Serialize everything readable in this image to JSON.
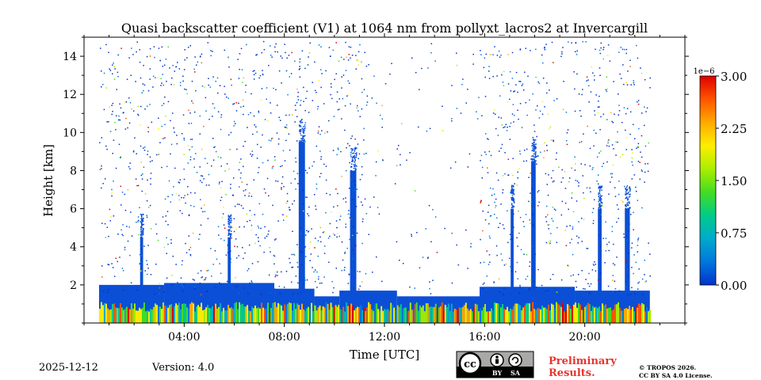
{
  "chart_data": {
    "type": "heatmap",
    "title": "Quasi backscatter coefficient (V1) at 1064 nm from pollyxt_lacros2 at Invercargill",
    "xlabel": "Time [UTC]",
    "ylabel": "Height [km]",
    "xlim_hours": [
      0,
      24
    ],
    "ylim_km": [
      0,
      15
    ],
    "x_ticks": [
      {
        "value": 4,
        "label": "04:00"
      },
      {
        "value": 8,
        "label": "08:00"
      },
      {
        "value": 12,
        "label": "12:00"
      },
      {
        "value": 16,
        "label": "16:00"
      },
      {
        "value": 20,
        "label": "20:00"
      }
    ],
    "y_ticks": [
      {
        "value": 2,
        "label": "2"
      },
      {
        "value": 4,
        "label": "4"
      },
      {
        "value": 6,
        "label": "6"
      },
      {
        "value": 8,
        "label": "8"
      },
      {
        "value": 10,
        "label": "10"
      },
      {
        "value": 12,
        "label": "12"
      },
      {
        "value": 14,
        "label": "14"
      }
    ],
    "data_start_hour": 0.6,
    "data_end_hour": 22.6,
    "boundary_layer": [
      {
        "from": 0.6,
        "to": 3.2,
        "top_km": 2.0
      },
      {
        "from": 3.2,
        "to": 7.6,
        "top_km": 2.1
      },
      {
        "from": 7.6,
        "to": 9.2,
        "top_km": 1.8
      },
      {
        "from": 9.2,
        "to": 10.2,
        "top_km": 1.4
      },
      {
        "from": 10.2,
        "to": 12.5,
        "top_km": 1.7
      },
      {
        "from": 12.5,
        "to": 15.8,
        "top_km": 1.4
      },
      {
        "from": 15.8,
        "to": 19.6,
        "top_km": 1.9
      },
      {
        "from": 19.6,
        "to": 22.6,
        "top_km": 1.7
      }
    ],
    "cloud_columns": [
      {
        "hour": 8.7,
        "top_km": 9.5,
        "width_h": 0.25
      },
      {
        "hour": 10.75,
        "top_km": 8.0,
        "width_h": 0.25
      },
      {
        "hour": 17.95,
        "top_km": 8.5,
        "width_h": 0.18
      },
      {
        "hour": 20.6,
        "top_km": 6.0,
        "width_h": 0.15
      },
      {
        "hour": 21.7,
        "top_km": 6.0,
        "width_h": 0.2
      },
      {
        "hour": 17.1,
        "top_km": 6.0,
        "width_h": 0.12
      },
      {
        "hour": 2.3,
        "top_km": 4.5,
        "width_h": 0.12
      },
      {
        "hour": 5.8,
        "top_km": 4.5,
        "width_h": 0.12
      }
    ],
    "colorbar": {
      "min": 0.0,
      "max": 3.0,
      "scale_label": "1e−6",
      "ticks": [
        {
          "value": 0.0,
          "label": "0.00"
        },
        {
          "value": 0.75,
          "label": "0.75"
        },
        {
          "value": 1.5,
          "label": "1.50"
        },
        {
          "value": 2.25,
          "label": "2.25"
        },
        {
          "value": 3.0,
          "label": "3.00"
        }
      ],
      "colors": [
        "#0033cc",
        "#0077dd",
        "#00aacc",
        "#00cc88",
        "#44dd22",
        "#aaee00",
        "#ffee00",
        "#ffaa00",
        "#ff5500",
        "#dd0000"
      ]
    }
  },
  "footer": {
    "date": "2025-12-12",
    "version": "Version: 4.0",
    "preliminary_line1": "Preliminary",
    "preliminary_line2": "Results.",
    "copyright_line1": "© TROPOS 2026.",
    "copyright_line2": "CC BY SA 4.0 License.",
    "license_badge": {
      "cc": "cc",
      "by": "BY",
      "sa": "SA"
    }
  }
}
